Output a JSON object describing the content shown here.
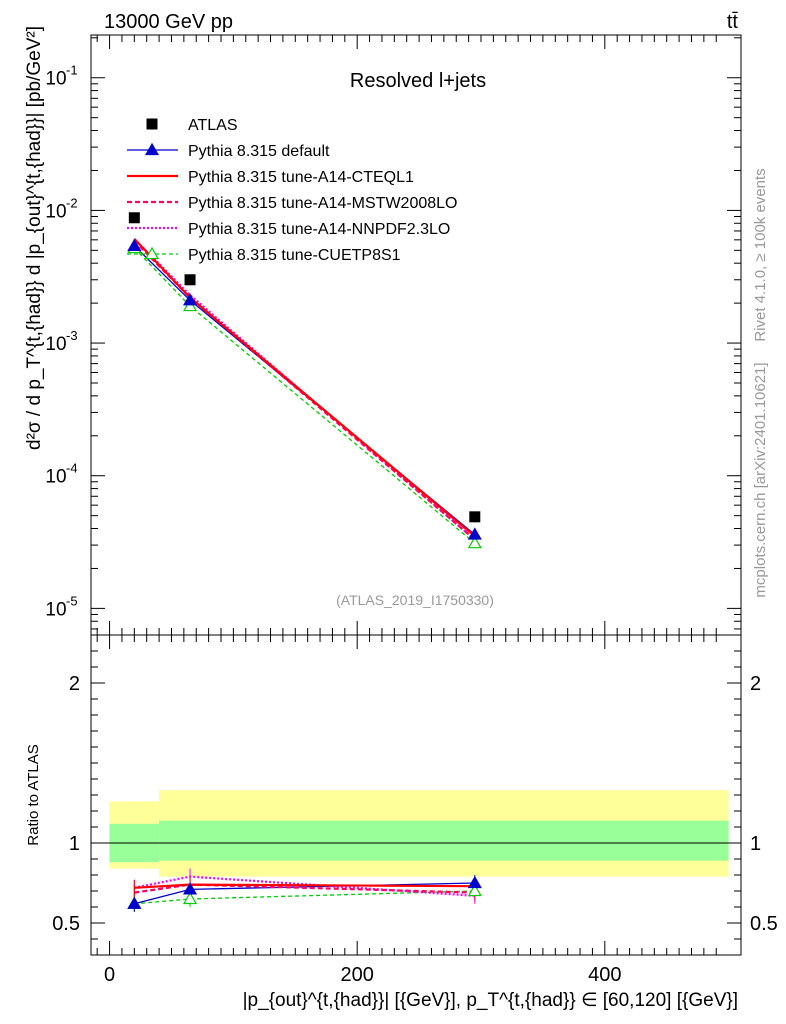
{
  "header": {
    "energy_label": "13000 GeV pp",
    "process_label": "tt̄",
    "panel_title": "Resolved l+jets",
    "analysis_id": "(ATLAS_2019_I1750330)",
    "side_text_top": "Rivet 4.1.0, ≥ 100k events",
    "side_text_bottom": "mcplots.cern.ch [arXiv:2401.10621]"
  },
  "axis_labels": {
    "y_main": "d²σ / d p_T^{t,{had}} d |p_{out}^{t,{had}}| [pb/GeV²]",
    "y_ratio": "Ratio to ATLAS",
    "x": "|p_{out}^{t,{had}}| [{GeV}], p_T^{t,{had}} ∈ [60,120] [{GeV}]"
  },
  "colors": {
    "atlas": "#000000",
    "default": "#0000cc",
    "cteql1": "#ff0000",
    "mstw": "#ff0066",
    "nnpdf": "#ff00ff",
    "cuetp": "#00cc00",
    "band_inner": "#99ff99",
    "band_outer": "#ffff99"
  },
  "chart_data": {
    "type": "scatter",
    "x_axis": {
      "range": [
        -15,
        510
      ],
      "ticks": [
        0,
        200,
        400
      ]
    },
    "y_axis_main": {
      "scale": "log",
      "range": [
        6.3e-06,
        0.21
      ],
      "ticks": [
        1e-05,
        0.0001,
        0.001,
        0.01,
        0.1
      ]
    },
    "y_axis_ratio": {
      "range": [
        0.3,
        2.3
      ],
      "ticks": [
        0.5,
        1,
        2
      ],
      "tick_labels": [
        "0.5",
        "1",
        "2"
      ]
    },
    "x": [
      20,
      65,
      295
    ],
    "series": [
      {
        "name": "ATLAS",
        "style": "data",
        "values": [
          0.0088,
          0.003,
          4.9e-05
        ],
        "ratio": [
          1,
          1,
          1
        ]
      },
      {
        "name": "Pythia 8.315 default",
        "style": "default",
        "values": [
          0.0054,
          0.0021,
          3.6e-05
        ],
        "ratio": [
          0.62,
          0.71,
          0.75
        ]
      },
      {
        "name": "Pythia 8.315 tune-A14-CTEQL1",
        "style": "cteql1",
        "values": [
          0.0061,
          0.0022,
          3.5e-05
        ],
        "ratio": [
          0.72,
          0.74,
          0.73
        ]
      },
      {
        "name": "Pythia 8.315 tune-A14-MSTW2008LO",
        "style": "mstw",
        "values": [
          0.0059,
          0.0022,
          3.3e-05
        ],
        "ratio": [
          0.69,
          0.74,
          0.69
        ]
      },
      {
        "name": "Pythia 8.315 tune-A14-NNPDF2.3LO",
        "style": "nnpdf",
        "values": [
          0.0061,
          0.0023,
          3.3e-05
        ],
        "ratio": [
          0.72,
          0.79,
          0.67
        ]
      },
      {
        "name": "Pythia 8.315 tune-CUETP8S1",
        "style": "cuetp",
        "values": [
          0.0052,
          0.0019,
          3.1e-05
        ],
        "ratio": [
          0.62,
          0.65,
          0.7
        ]
      }
    ],
    "ratio_bands": [
      {
        "x_range": [
          0,
          40
        ],
        "inner": [
          0.88,
          1.12
        ],
        "outer": [
          0.84,
          1.26
        ]
      },
      {
        "x_range": [
          40,
          500
        ],
        "inner": [
          0.89,
          1.14
        ],
        "outer": [
          0.79,
          1.33
        ]
      }
    ]
  }
}
